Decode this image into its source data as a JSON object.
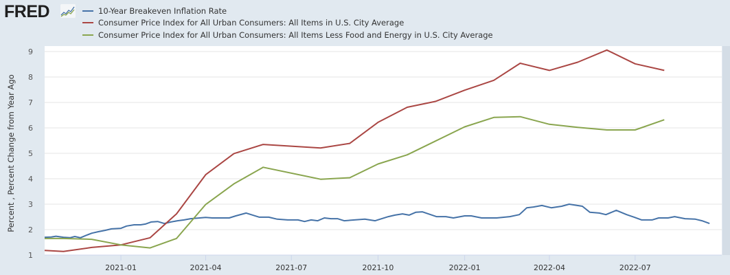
{
  "brand": {
    "logo_text": "FRED",
    "logo_icon": "chart-trend-icon"
  },
  "colors": {
    "background": "#e1e9f0",
    "plot_background": "#ffffff",
    "grid": "#e6e6e6",
    "series_blue": "#4572a7",
    "series_red": "#aa4643",
    "series_green": "#89a54e"
  },
  "chart_data": {
    "type": "line",
    "title": "",
    "xlabel": "",
    "ylabel": "Percent , Percent Change from Year Ago",
    "ylim": [
      1,
      9
    ],
    "yticks": [
      1,
      2,
      3,
      4,
      5,
      6,
      7,
      8,
      9
    ],
    "xlim": [
      "2020-10-12",
      "2022-10-01"
    ],
    "xticks": [
      "2021-01",
      "2021-04",
      "2021-07",
      "2021-10",
      "2022-01",
      "2022-04",
      "2022-07"
    ],
    "grid": true,
    "legend_position": "top-left",
    "series": [
      {
        "name": "10-Year Breakeven Inflation Rate",
        "color": "#4572a7",
        "points": [
          [
            "2020-10-12",
            1.7
          ],
          [
            "2020-10-19",
            1.71
          ],
          [
            "2020-10-24",
            1.74
          ],
          [
            "2020-11-01",
            1.7
          ],
          [
            "2020-11-08",
            1.68
          ],
          [
            "2020-11-13",
            1.73
          ],
          [
            "2020-11-19",
            1.68
          ],
          [
            "2020-11-24",
            1.76
          ],
          [
            "2020-12-01",
            1.86
          ],
          [
            "2020-12-08",
            1.92
          ],
          [
            "2020-12-15",
            1.97
          ],
          [
            "2020-12-22",
            2.03
          ],
          [
            "2021-01-01",
            2.05
          ],
          [
            "2021-01-07",
            2.14
          ],
          [
            "2021-01-15",
            2.19
          ],
          [
            "2021-01-22",
            2.19
          ],
          [
            "2021-01-27",
            2.22
          ],
          [
            "2021-02-02",
            2.3
          ],
          [
            "2021-02-09",
            2.32
          ],
          [
            "2021-02-16",
            2.24
          ],
          [
            "2021-02-23",
            2.3
          ],
          [
            "2021-03-02",
            2.35
          ],
          [
            "2021-03-09",
            2.38
          ],
          [
            "2021-03-16",
            2.43
          ],
          [
            "2021-04-01",
            2.48
          ],
          [
            "2021-04-08",
            2.46
          ],
          [
            "2021-04-15",
            2.46
          ],
          [
            "2021-04-26",
            2.46
          ],
          [
            "2021-05-03",
            2.54
          ],
          [
            "2021-05-14",
            2.65
          ],
          [
            "2021-05-21",
            2.57
          ],
          [
            "2021-05-28",
            2.49
          ],
          [
            "2021-06-07",
            2.49
          ],
          [
            "2021-06-16",
            2.41
          ],
          [
            "2021-06-27",
            2.38
          ],
          [
            "2021-07-08",
            2.38
          ],
          [
            "2021-07-15",
            2.32
          ],
          [
            "2021-07-22",
            2.38
          ],
          [
            "2021-07-29",
            2.35
          ],
          [
            "2021-08-05",
            2.46
          ],
          [
            "2021-08-12",
            2.43
          ],
          [
            "2021-08-19",
            2.43
          ],
          [
            "2021-08-26",
            2.35
          ],
          [
            "2021-09-06",
            2.38
          ],
          [
            "2021-09-17",
            2.41
          ],
          [
            "2021-09-28",
            2.35
          ],
          [
            "2021-10-12",
            2.51
          ],
          [
            "2021-10-19",
            2.57
          ],
          [
            "2021-10-27",
            2.62
          ],
          [
            "2021-11-03",
            2.57
          ],
          [
            "2021-11-10",
            2.68
          ],
          [
            "2021-11-17",
            2.7
          ],
          [
            "2021-12-02",
            2.51
          ],
          [
            "2021-12-12",
            2.51
          ],
          [
            "2021-12-20",
            2.46
          ],
          [
            "2022-01-01",
            2.54
          ],
          [
            "2022-01-08",
            2.54
          ],
          [
            "2022-01-19",
            2.46
          ],
          [
            "2022-02-04",
            2.46
          ],
          [
            "2022-02-18",
            2.51
          ],
          [
            "2022-02-28",
            2.59
          ],
          [
            "2022-03-08",
            2.86
          ],
          [
            "2022-03-15",
            2.89
          ],
          [
            "2022-03-24",
            2.95
          ],
          [
            "2022-04-03",
            2.86
          ],
          [
            "2022-04-14",
            2.92
          ],
          [
            "2022-04-22",
            3.0
          ],
          [
            "2022-05-06",
            2.92
          ],
          [
            "2022-05-14",
            2.68
          ],
          [
            "2022-05-24",
            2.65
          ],
          [
            "2022-05-31",
            2.59
          ],
          [
            "2022-06-11",
            2.76
          ],
          [
            "2022-06-22",
            2.59
          ],
          [
            "2022-06-30",
            2.49
          ],
          [
            "2022-07-08",
            2.38
          ],
          [
            "2022-07-19",
            2.38
          ],
          [
            "2022-07-26",
            2.46
          ],
          [
            "2022-08-05",
            2.46
          ],
          [
            "2022-08-12",
            2.51
          ],
          [
            "2022-08-23",
            2.43
          ],
          [
            "2022-09-03",
            2.41
          ],
          [
            "2022-09-10",
            2.35
          ],
          [
            "2022-09-18",
            2.24
          ]
        ]
      },
      {
        "name": "Consumer Price Index for All Urban Consumers: All Items in U.S. City Average",
        "color": "#aa4643",
        "points": [
          [
            "2020-10-12",
            1.18
          ],
          [
            "2020-11-01",
            1.14
          ],
          [
            "2020-12-01",
            1.3
          ],
          [
            "2021-01-01",
            1.4
          ],
          [
            "2021-02-01",
            1.68
          ],
          [
            "2021-03-01",
            2.62
          ],
          [
            "2021-04-01",
            4.16
          ],
          [
            "2021-05-01",
            4.99
          ],
          [
            "2021-06-01",
            5.35
          ],
          [
            "2021-08-01",
            5.21
          ],
          [
            "2021-09-01",
            5.39
          ],
          [
            "2021-10-01",
            6.22
          ],
          [
            "2021-11-01",
            6.81
          ],
          [
            "2021-12-01",
            7.04
          ],
          [
            "2022-01-01",
            7.48
          ],
          [
            "2022-02-01",
            7.87
          ],
          [
            "2022-03-01",
            8.54
          ],
          [
            "2022-04-01",
            8.26
          ],
          [
            "2022-05-01",
            8.58
          ],
          [
            "2022-06-01",
            9.06
          ],
          [
            "2022-07-01",
            8.52
          ],
          [
            "2022-08-01",
            8.26
          ]
        ]
      },
      {
        "name": "Consumer Price Index for All Urban Consumers: All Items Less Food and Energy in U.S. City Average",
        "color": "#89a54e",
        "points": [
          [
            "2020-10-12",
            1.65
          ],
          [
            "2020-11-01",
            1.65
          ],
          [
            "2020-12-01",
            1.62
          ],
          [
            "2021-01-01",
            1.4
          ],
          [
            "2021-02-01",
            1.28
          ],
          [
            "2021-03-01",
            1.65
          ],
          [
            "2021-04-01",
            2.99
          ],
          [
            "2021-05-01",
            3.8
          ],
          [
            "2021-06-01",
            4.45
          ],
          [
            "2021-08-01",
            3.98
          ],
          [
            "2021-09-01",
            4.04
          ],
          [
            "2021-10-01",
            4.58
          ],
          [
            "2021-11-01",
            4.94
          ],
          [
            "2021-12-01",
            5.48
          ],
          [
            "2022-01-01",
            6.04
          ],
          [
            "2022-02-01",
            6.41
          ],
          [
            "2022-03-01",
            6.44
          ],
          [
            "2022-04-01",
            6.14
          ],
          [
            "2022-05-01",
            6.02
          ],
          [
            "2022-06-01",
            5.92
          ],
          [
            "2022-07-01",
            5.92
          ],
          [
            "2022-08-01",
            6.32
          ]
        ]
      }
    ]
  }
}
